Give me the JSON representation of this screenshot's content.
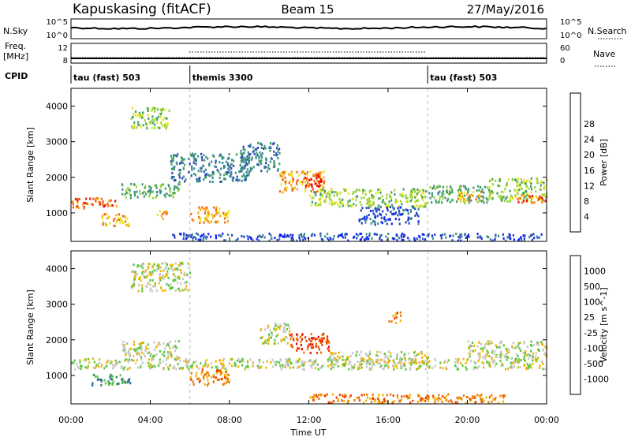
{
  "header": {
    "station": "Kapuskasing (fitACF)",
    "beam": "Beam 15",
    "date": "27/May/2016"
  },
  "top_panels": {
    "nsky_label": "N.Sky",
    "nsky_ticks": [
      "10^5",
      "10^0"
    ],
    "nsearch_label": "N.Search",
    "nsearch_ticks": [
      "10^5",
      "10^0"
    ],
    "freq_label": "Freq.",
    "freq_unit": "[MHz]",
    "freq_ticks": [
      "12",
      "8"
    ],
    "nave_label": "Nave",
    "nave_ticks": [
      "60",
      "0"
    ],
    "cpid_label": "CPID"
  },
  "cpid": [
    {
      "label": "tau (fast) 503",
      "start": 0,
      "end": 6
    },
    {
      "label": "themis 3300",
      "start": 6,
      "end": 18
    },
    {
      "label": "tau (fast) 503",
      "start": 18,
      "end": 24
    }
  ],
  "chart_data": [
    {
      "type": "heatmap",
      "title": "",
      "xlabel": "Time UT",
      "ylabel": "Slant Range [km]",
      "xlim": [
        0,
        24
      ],
      "ylim": [
        200,
        4500
      ],
      "x_ticks": [
        "00:00",
        "04:00",
        "08:00",
        "12:00",
        "16:00",
        "20:00",
        "00:00"
      ],
      "y_ticks": [
        1000,
        2000,
        3000,
        4000
      ],
      "colorbar": {
        "label": "Power [dB]",
        "ticks": [
          "4",
          "8",
          "12",
          "16",
          "20",
          "24",
          "28"
        ],
        "colors": [
          "#1020ff",
          "#2848b8",
          "#3c8a96",
          "#40a060",
          "#9ad23a",
          "#e6e61e",
          "#f5a50a",
          "#f26414",
          "#e6140a"
        ]
      },
      "scatter_bands": [
        {
          "t0": 0.0,
          "t1": 2.3,
          "r0": 1150,
          "r1": 1450,
          "level": 7
        },
        {
          "t0": 1.5,
          "t1": 3.0,
          "r0": 650,
          "r1": 1000,
          "level": 6
        },
        {
          "t0": 2.5,
          "t1": 5.5,
          "r0": 1450,
          "r1": 1850,
          "level": 3
        },
        {
          "t0": 3.0,
          "t1": 5.0,
          "r0": 3400,
          "r1": 4000,
          "level": 4
        },
        {
          "t0": 4.3,
          "t1": 4.8,
          "r0": 850,
          "r1": 1100,
          "level": 6
        },
        {
          "t0": 6.0,
          "t1": 8.0,
          "r0": 750,
          "r1": 1200,
          "level": 6
        },
        {
          "t0": 5.0,
          "t1": 9.0,
          "r0": 1900,
          "r1": 2700,
          "level": 2
        },
        {
          "t0": 8.5,
          "t1": 10.5,
          "r0": 2200,
          "r1": 3000,
          "level": 2
        },
        {
          "t0": 10.5,
          "t1": 12.8,
          "r0": 1600,
          "r1": 2200,
          "level": 6
        },
        {
          "t0": 11.7,
          "t1": 12.6,
          "r0": 1750,
          "r1": 2150,
          "level": 8
        },
        {
          "t0": 12.0,
          "t1": 18.0,
          "r0": 1200,
          "r1": 1700,
          "level": 4
        },
        {
          "t0": 14.5,
          "t1": 17.5,
          "r0": 700,
          "r1": 1200,
          "level": 1
        },
        {
          "t0": 18.0,
          "t1": 21.0,
          "r0": 1300,
          "r1": 1800,
          "level": 3
        },
        {
          "t0": 19.5,
          "t1": 20.8,
          "r0": 1350,
          "r1": 1650,
          "level": 6
        },
        {
          "t0": 21.0,
          "t1": 24.0,
          "r0": 1350,
          "r1": 2000,
          "level": 4
        },
        {
          "t0": 22.5,
          "t1": 24.0,
          "r0": 1300,
          "r1": 1550,
          "level": 7
        },
        {
          "t0": 5.0,
          "t1": 24.0,
          "r0": 250,
          "r1": 450,
          "level": 1
        }
      ]
    },
    {
      "type": "heatmap",
      "title": "",
      "xlabel": "Time UT",
      "ylabel": "Slant Range [km]",
      "xlim": [
        0,
        24
      ],
      "ylim": [
        200,
        4500
      ],
      "x_ticks": [
        "00:00",
        "04:00",
        "08:00",
        "12:00",
        "16:00",
        "20:00",
        "00:00"
      ],
      "y_ticks": [
        1000,
        2000,
        3000,
        4000
      ],
      "colorbar": {
        "label": "Velocity [m s^-1]",
        "ticks": [
          "1000",
          "500",
          "100",
          "25",
          "-25",
          "-100",
          "-500",
          "-1000"
        ],
        "colors": [
          "#1f3ccc",
          "#2f6e9a",
          "#2e8a4a",
          "#5ac83c",
          "#c8c8c4",
          "#f0b400",
          "#f07800",
          "#f04000",
          "#e01010"
        ]
      },
      "scatter_bands": [
        {
          "t0": 0.0,
          "t1": 24.0,
          "r0": 1200,
          "r1": 1500,
          "level": 4
        },
        {
          "t0": 2.5,
          "t1": 5.5,
          "r0": 1500,
          "r1": 2000,
          "level": 4
        },
        {
          "t0": 1.0,
          "t1": 3.0,
          "r0": 750,
          "r1": 1050,
          "level": 2
        },
        {
          "t0": 6.0,
          "t1": 8.0,
          "r0": 750,
          "r1": 1200,
          "level": 6
        },
        {
          "t0": 11.0,
          "t1": 13.0,
          "r0": 1650,
          "r1": 2200,
          "level": 7
        },
        {
          "t0": 9.5,
          "t1": 11.0,
          "r0": 1900,
          "r1": 2500,
          "level": 4
        },
        {
          "t0": 13.0,
          "t1": 18.0,
          "r0": 1300,
          "r1": 1700,
          "level": 4
        },
        {
          "t0": 16.0,
          "t1": 16.6,
          "r0": 2500,
          "r1": 2800,
          "level": 6
        },
        {
          "t0": 20.0,
          "t1": 24.0,
          "r0": 1500,
          "r1": 2000,
          "level": 4
        },
        {
          "t0": 3.0,
          "t1": 6.0,
          "r0": 3400,
          "r1": 4200,
          "level": 4
        },
        {
          "t0": 12.0,
          "t1": 22.0,
          "r0": 250,
          "r1": 500,
          "level": 6
        }
      ]
    }
  ]
}
